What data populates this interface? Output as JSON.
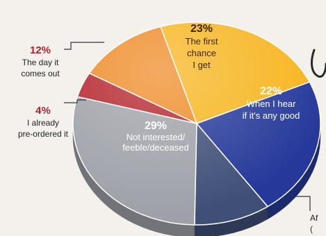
{
  "chart_data": {
    "type": "pie",
    "style": "3d",
    "slices": [
      {
        "label": "The first chance I get",
        "value": 23,
        "display": "23%",
        "lines": [
          "The first",
          "chance",
          "I get"
        ],
        "color": "#f7b51f",
        "placement": "inside"
      },
      {
        "label": "When I hear if it's any good",
        "value": 22,
        "display": "22%",
        "lines": [
          "When I hear",
          "if it's any good"
        ],
        "color": "#26399a",
        "placement": "inside"
      },
      {
        "label": "Af…",
        "value": 10,
        "display": "",
        "lines": [
          "Af",
          "("
        ],
        "color": "#3f4f78",
        "placement": "outside-right"
      },
      {
        "label": "Not interested/feeble/deceased",
        "value": 29,
        "display": "29%",
        "lines": [
          "Not interested/",
          "feeble/deceased"
        ],
        "color": "#9ea1a8",
        "placement": "inside"
      },
      {
        "label": "I already pre-ordered it",
        "value": 4,
        "display": "4%",
        "lines": [
          "I already",
          "pre-ordered it"
        ],
        "color": "#b3222a",
        "placement": "outside-left"
      },
      {
        "label": "The day it comes out",
        "value": 12,
        "display": "12%",
        "lines": [
          "The day it",
          "comes out"
        ],
        "color": "#ef8a25",
        "placement": "outside-left"
      }
    ]
  },
  "colors": {
    "background": "#f4f1ec",
    "label_red": "#b3222a",
    "label_dark": "#222222",
    "label_light": "#ffffff"
  }
}
